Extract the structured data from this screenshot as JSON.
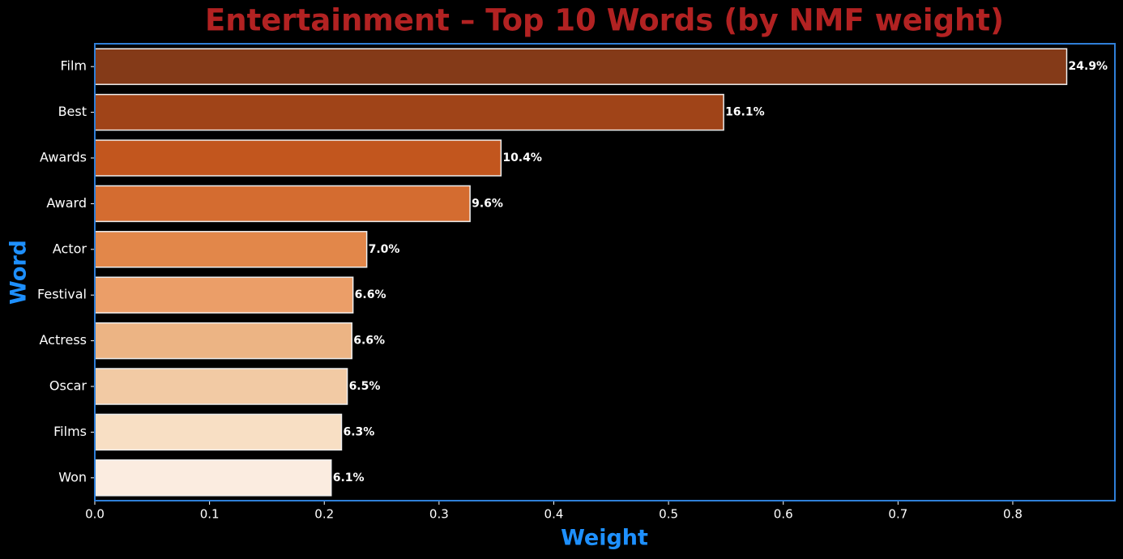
{
  "chart_data": {
    "type": "barh",
    "title": "Entertainment – Top 10 Words (by NMF weight)",
    "xlabel": "Weight",
    "ylabel": "Word",
    "categories": [
      "Film",
      "Best",
      "Awards",
      "Award",
      "Actor",
      "Festival",
      "Actress",
      "Oscar",
      "Films",
      "Won"
    ],
    "values": [
      0.847,
      0.548,
      0.354,
      0.327,
      0.237,
      0.225,
      0.224,
      0.22,
      0.215,
      0.206
    ],
    "annotations": [
      "24.9%",
      "16.1%",
      "10.4%",
      "9.6%",
      "7.0%",
      "6.6%",
      "6.6%",
      "6.5%",
      "6.3%",
      "6.1%"
    ],
    "colors": [
      "#843a18",
      "#a04418",
      "#c2561e",
      "#d46c30",
      "#e2874a",
      "#eb9e68",
      "#ecb484",
      "#f2caa4",
      "#f8dfc4",
      "#fbece0"
    ],
    "xlim": [
      0,
      0.889
    ],
    "xticks": [
      {
        "value": 0,
        "label": "0.0"
      },
      0.1,
      0.2,
      0.3,
      0.4,
      0.5,
      0.6,
      0.7,
      0.8
    ]
  }
}
